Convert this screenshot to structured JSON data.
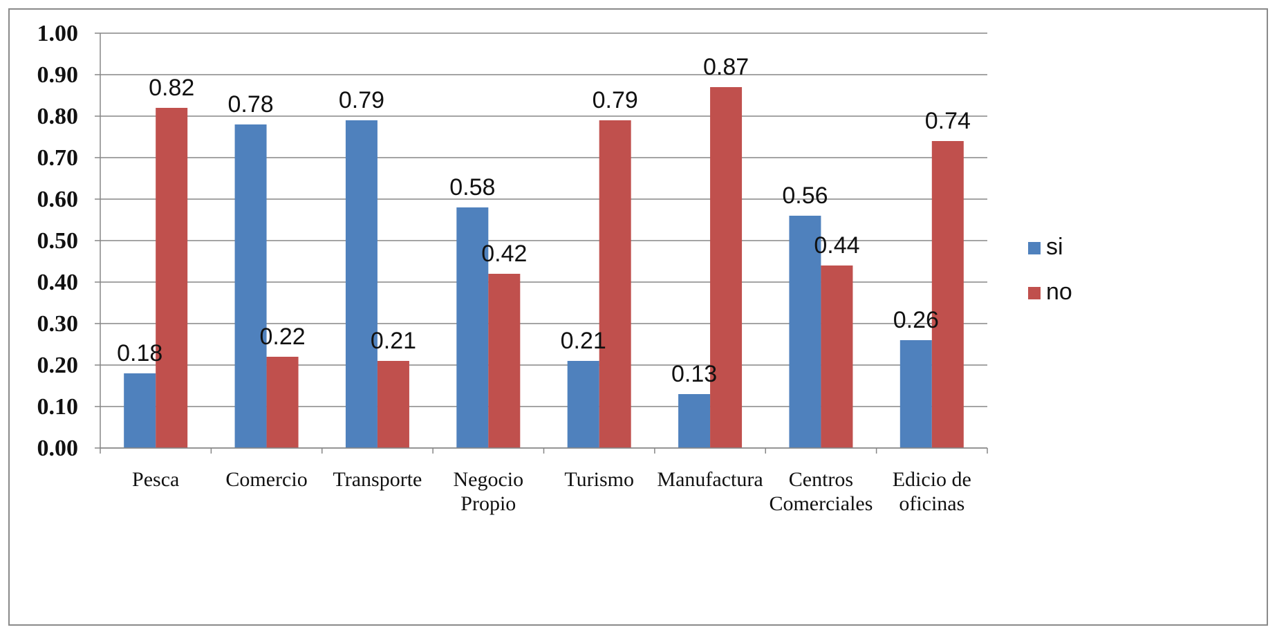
{
  "chart_data": {
    "type": "bar",
    "title": "",
    "xlabel": "",
    "ylabel": "",
    "ylim": [
      0,
      1.0
    ],
    "y_ticks": [
      "0.00",
      "0.10",
      "0.20",
      "0.30",
      "0.40",
      "0.50",
      "0.60",
      "0.70",
      "0.80",
      "0.90",
      "1.00"
    ],
    "grid": true,
    "legend_position": "right",
    "categories": [
      [
        "Pesca"
      ],
      [
        "Comercio"
      ],
      [
        "Transporte"
      ],
      [
        "Negocio",
        "Propio"
      ],
      [
        "Turismo"
      ],
      [
        "Manufactura"
      ],
      [
        "Centros",
        "Comerciales"
      ],
      [
        "Edicio de",
        "oficinas"
      ]
    ],
    "series": [
      {
        "name": "si",
        "color": "#4f81bd",
        "values": [
          0.18,
          0.78,
          0.79,
          0.58,
          0.21,
          0.13,
          0.56,
          0.26
        ],
        "labels": [
          "0.18",
          "0.78",
          "0.79",
          "0.58",
          "0.21",
          "0.13",
          "0.56",
          "0.26"
        ]
      },
      {
        "name": "no",
        "color": "#c0504d",
        "values": [
          0.82,
          0.22,
          0.21,
          0.42,
          0.79,
          0.87,
          0.44,
          0.74
        ],
        "labels": [
          "0.82",
          "0.22",
          "0.21",
          "0.42",
          "0.79",
          "0.87",
          "0.44",
          "0.74"
        ]
      }
    ]
  }
}
